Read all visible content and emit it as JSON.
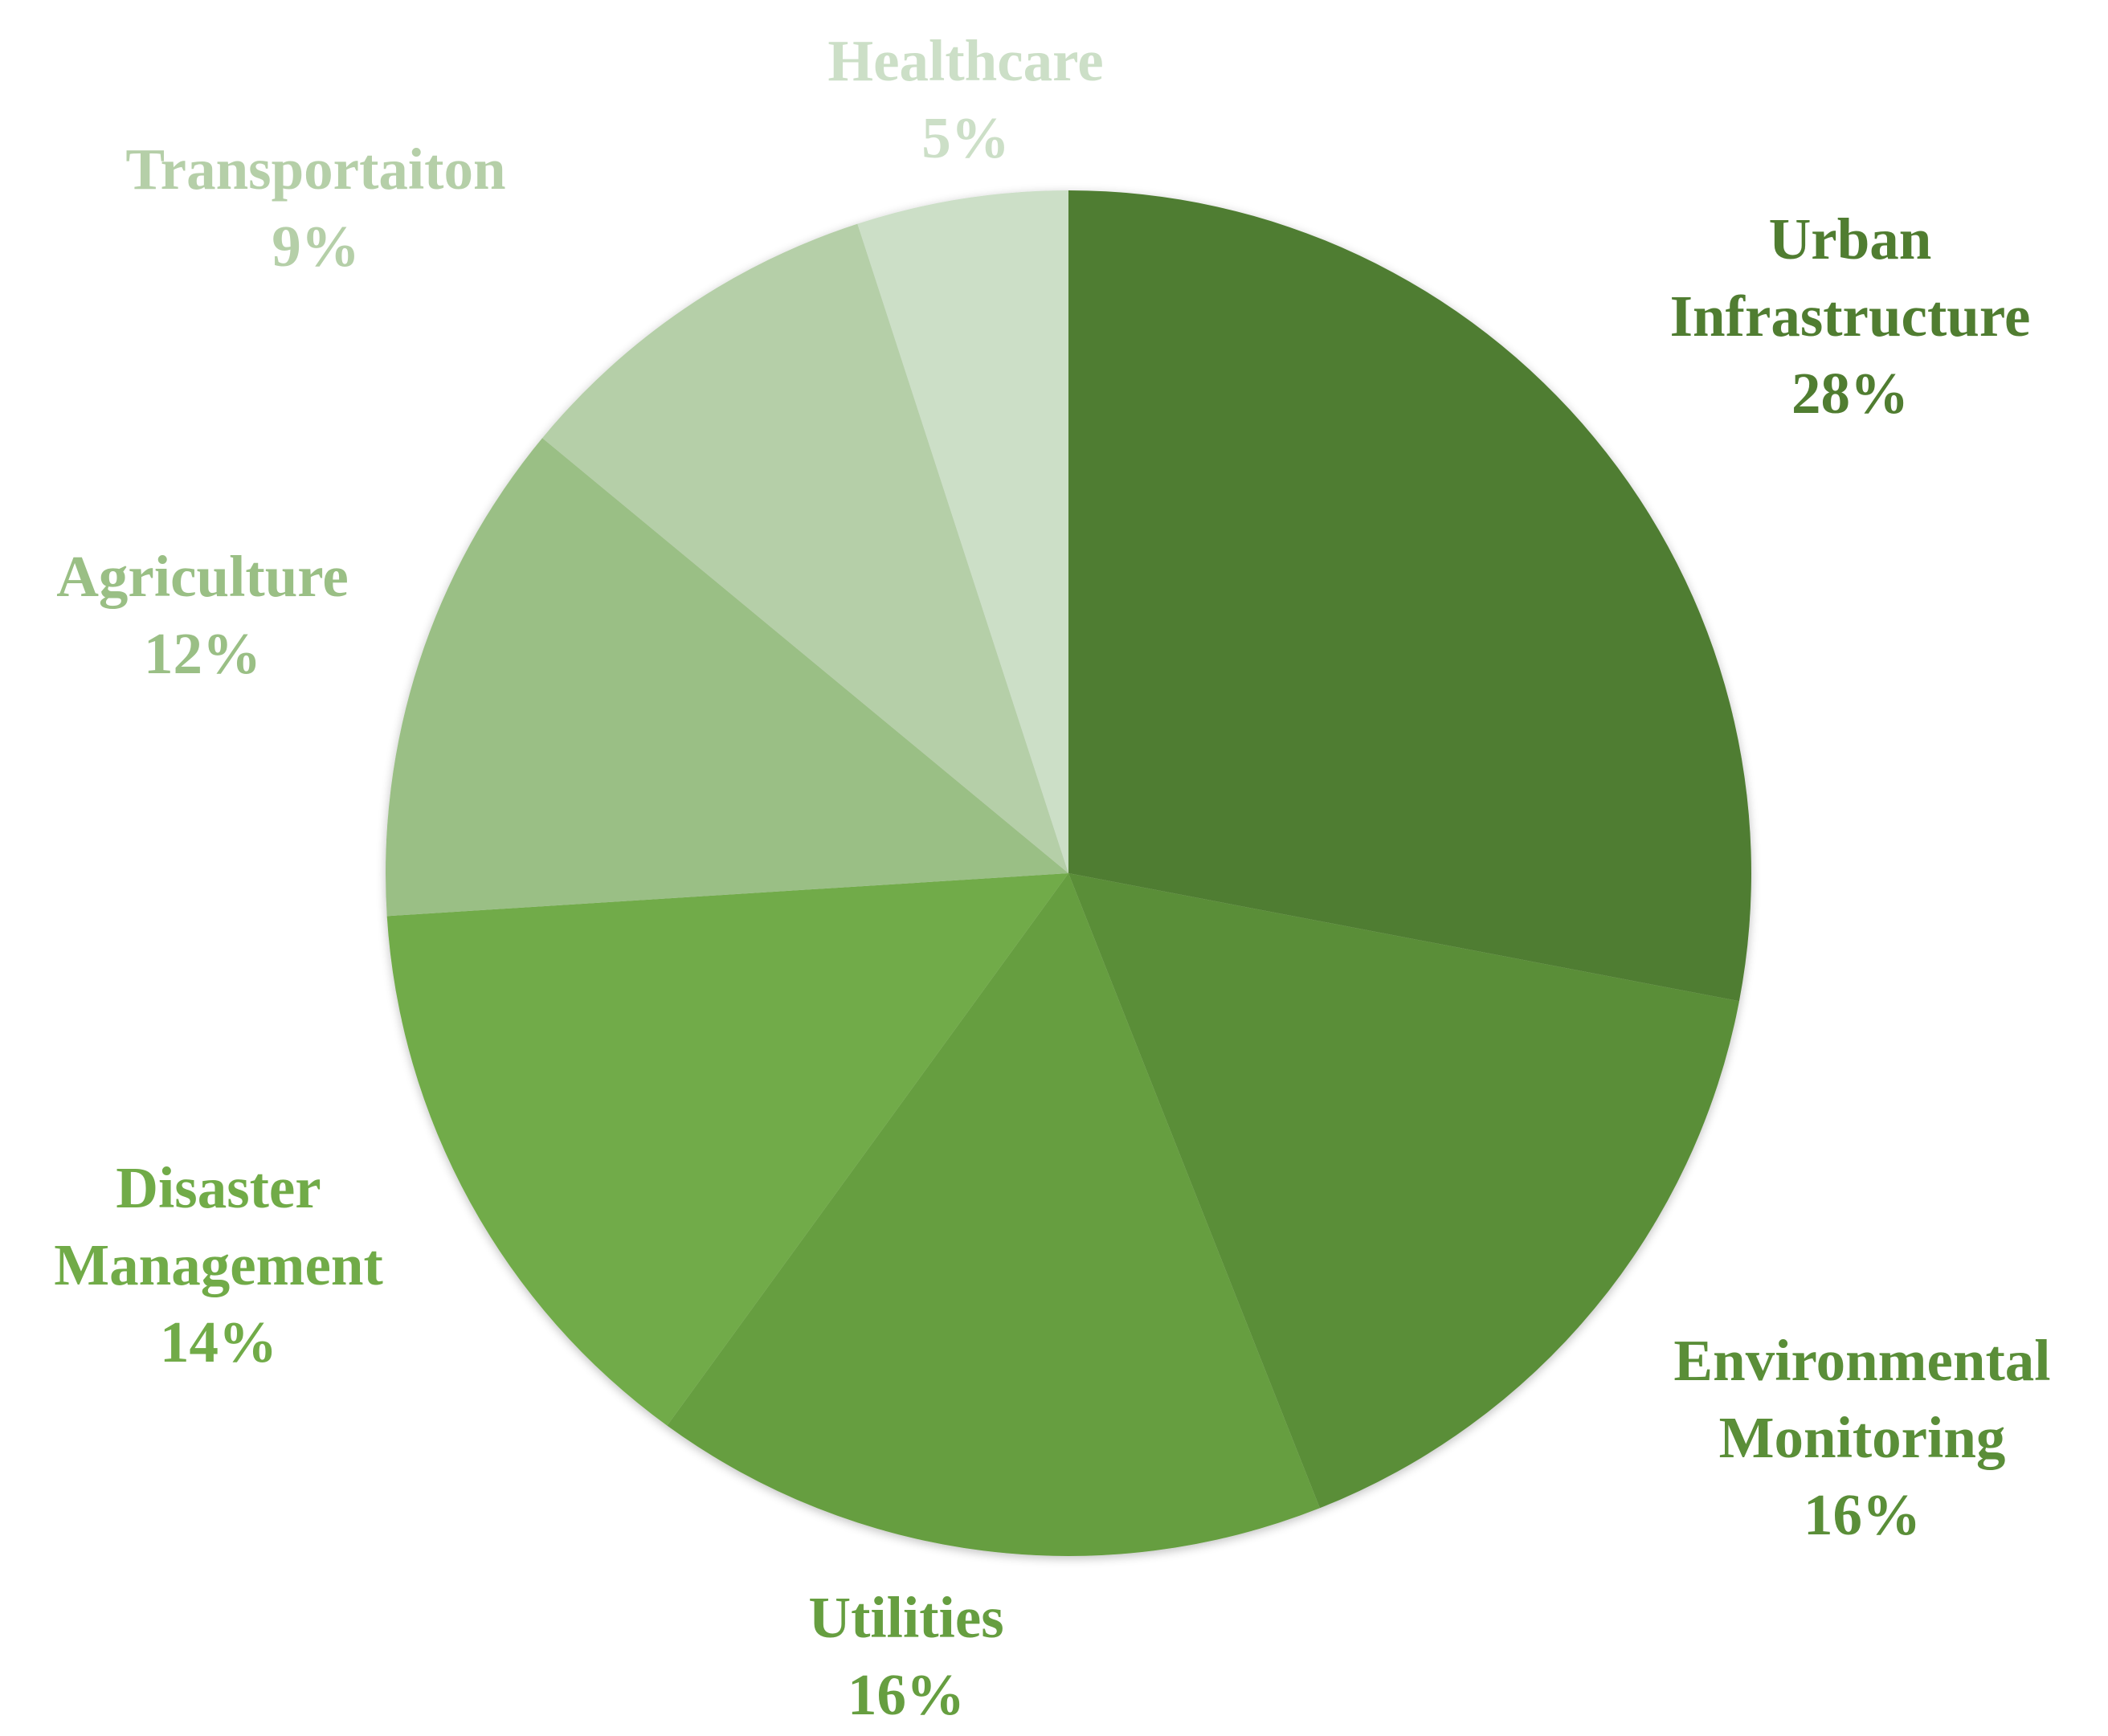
{
  "chart_data": {
    "type": "pie",
    "start": "12 o'clock",
    "direction": "clockwise",
    "slices": [
      {
        "label_lines": [
          "Urban",
          "Infrastructure"
        ],
        "percent_text": "28%",
        "value": 28,
        "color": "#507D31"
      },
      {
        "label_lines": [
          "Environmental",
          "Monitoring"
        ],
        "percent_text": "16%",
        "value": 16,
        "color": "#5A8E38"
      },
      {
        "label_lines": [
          "Utilities"
        ],
        "percent_text": "16%",
        "value": 16,
        "color": "#669E40"
      },
      {
        "label_lines": [
          "Disaster",
          "Management"
        ],
        "percent_text": "14%",
        "value": 14,
        "color": "#71AB48"
      },
      {
        "label_lines": [
          "Agriculture"
        ],
        "percent_text": "12%",
        "value": 12,
        "color": "#9ABF85"
      },
      {
        "label_lines": [
          "Transportaiton"
        ],
        "percent_text": "9%",
        "value": 9,
        "color": "#B5CFA8"
      },
      {
        "label_lines": [
          "Healthcare"
        ],
        "percent_text": "5%",
        "value": 5,
        "color": "#CCDFC7"
      }
    ]
  }
}
